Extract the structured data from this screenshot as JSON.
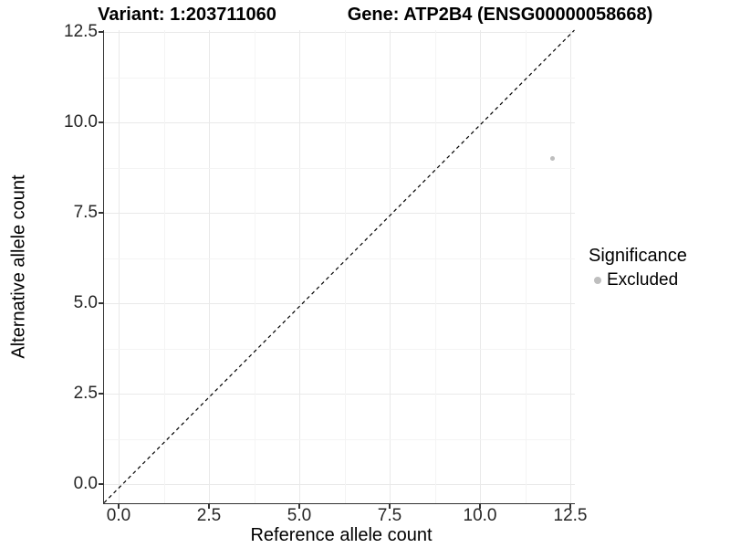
{
  "chart_data": {
    "type": "scatter",
    "variant_title": "Variant: 1:203711060",
    "gene_title": "Gene: ATP2B4 (ENSG00000058668)",
    "xlabel": "Reference allele count",
    "ylabel": "Alternative allele count",
    "x_ticks": [
      0,
      2.5,
      5,
      7.5,
      10,
      12.5
    ],
    "y_ticks": [
      0,
      2.5,
      5,
      7.5,
      10,
      12.5
    ],
    "x_tick_labels": [
      "0.0",
      "2.5",
      "5.0",
      "7.5",
      "10.0",
      "12.5"
    ],
    "y_tick_labels": [
      "0.0",
      "2.5",
      "5.0",
      "7.5",
      "10.0",
      "12.5"
    ],
    "xlim": [
      -0.45,
      12.6
    ],
    "ylim": [
      -0.55,
      12.6
    ],
    "grid": {
      "major_every": 2.5,
      "minor_every": 1.25,
      "major_color": "#e9e9e9",
      "minor_color": "#f4f4f4"
    },
    "points": [
      {
        "x": 12,
        "y": 9,
        "significance": "Excluded",
        "color": "#bebebe"
      }
    ],
    "identity_line": {
      "style": "dashed",
      "color": "#000000",
      "slope": 1,
      "intercept": 0
    },
    "legend": {
      "title": "Significance",
      "position": "right",
      "items": [
        {
          "label": "Excluded",
          "color": "#bebebe"
        }
      ]
    },
    "colors": {
      "point": "#bebebe",
      "axis_line": "#333333",
      "background": "#ffffff"
    }
  }
}
